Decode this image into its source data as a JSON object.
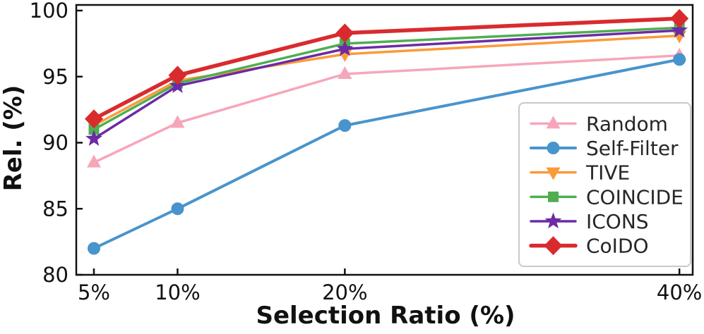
{
  "chart_data": {
    "type": "line",
    "title": "",
    "xlabel": "Selection Ratio (%)",
    "ylabel": "Rel. (%)",
    "x": [
      5,
      10,
      20,
      40
    ],
    "x_tick_labels": [
      "5%",
      "10%",
      "20%",
      "40%"
    ],
    "y_ticks": [
      80,
      85,
      90,
      95,
      100
    ],
    "y_tick_labels": [
      "80",
      "85",
      "90",
      "95",
      "100"
    ],
    "ylim": [
      80,
      100
    ],
    "xlim": [
      3.9,
      41.1
    ],
    "x_scale": "linear",
    "grid": false,
    "legend_position": "lower-right",
    "axis_color": "#111111",
    "legend_border_color": "#c9c9c9",
    "series": [
      {
        "name": "Random",
        "marker": "triangle-up",
        "color": "#f7a6ba",
        "line_width": 3.5,
        "values": [
          88.5,
          91.5,
          95.2,
          96.6
        ]
      },
      {
        "name": "Self-Filter",
        "marker": "circle",
        "color": "#4894cc",
        "line_width": 4.0,
        "values": [
          82.0,
          85.0,
          91.3,
          96.3
        ]
      },
      {
        "name": "TIVE",
        "marker": "triangle-down",
        "color": "#fb9a3b",
        "line_width": 3.5,
        "values": [
          91.3,
          94.7,
          96.7,
          98.1
        ]
      },
      {
        "name": "COINCIDE",
        "marker": "square",
        "color": "#4fae51",
        "line_width": 3.5,
        "values": [
          91.0,
          94.5,
          97.5,
          98.7
        ]
      },
      {
        "name": "ICONS",
        "marker": "star",
        "color": "#6c2ba5",
        "line_width": 3.5,
        "values": [
          90.3,
          94.3,
          97.1,
          98.5
        ]
      },
      {
        "name": "CoIDO",
        "marker": "diamond",
        "color": "#d92b2e",
        "line_width": 5.5,
        "values": [
          91.8,
          95.1,
          98.3,
          99.4
        ]
      }
    ]
  }
}
